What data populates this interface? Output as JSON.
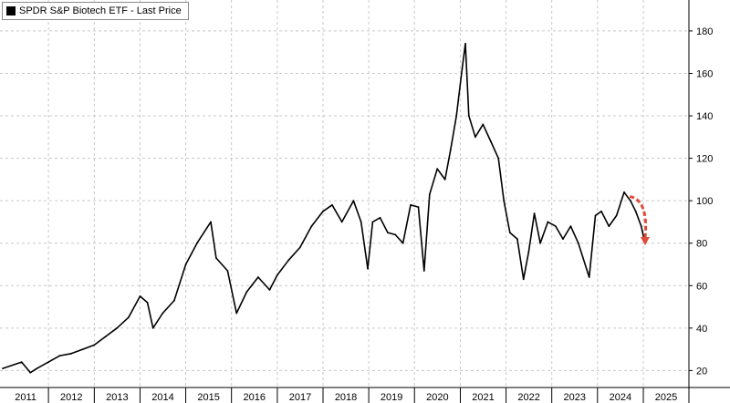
{
  "chart_data": {
    "type": "line",
    "title": "",
    "legend": {
      "position": "top-left",
      "entries": [
        "SPDR S&P Biotech ETF - Last Price"
      ]
    },
    "xlabel": "",
    "ylabel": "",
    "x_ticks": [
      "2011",
      "2012",
      "2013",
      "2014",
      "2015",
      "2016",
      "2017",
      "2018",
      "2019",
      "2020",
      "2021",
      "2022",
      "2023",
      "2024",
      "2025"
    ],
    "y_ticks": [
      20,
      40,
      60,
      80,
      100,
      120,
      140,
      160,
      180
    ],
    "ylim": [
      12,
      192
    ],
    "xlim": [
      "2011-01-01",
      "2025-12-31"
    ],
    "y_axis_position": "right",
    "grid": true,
    "colors": {
      "line": "#000000",
      "grid": "#c8c8c8",
      "arrow": "#e04a3a"
    },
    "annotations": [
      {
        "type": "arrow",
        "style": "dashed-curved",
        "color": "#e04a3a",
        "from": [
          "2024-09-15",
          102
        ],
        "to": [
          "2025-01-15",
          79
        ]
      }
    ],
    "series": [
      {
        "name": "SPDR S&P Biotech ETF - Last Price",
        "points": [
          [
            "2011-01-01",
            21
          ],
          [
            "2011-06-01",
            24
          ],
          [
            "2011-08-10",
            19
          ],
          [
            "2011-10-01",
            21
          ],
          [
            "2012-01-01",
            24
          ],
          [
            "2012-04-01",
            27
          ],
          [
            "2012-07-01",
            28
          ],
          [
            "2012-10-01",
            30
          ],
          [
            "2013-01-01",
            32
          ],
          [
            "2013-04-01",
            36
          ],
          [
            "2013-07-01",
            40
          ],
          [
            "2013-10-01",
            45
          ],
          [
            "2014-01-01",
            55
          ],
          [
            "2014-03-01",
            52
          ],
          [
            "2014-04-15",
            40
          ],
          [
            "2014-07-01",
            47
          ],
          [
            "2014-10-01",
            53
          ],
          [
            "2015-01-01",
            70
          ],
          [
            "2015-04-01",
            80
          ],
          [
            "2015-07-20",
            90
          ],
          [
            "2015-09-01",
            73
          ],
          [
            "2015-12-01",
            67
          ],
          [
            "2016-02-10",
            47
          ],
          [
            "2016-05-01",
            57
          ],
          [
            "2016-08-01",
            64
          ],
          [
            "2016-11-01",
            58
          ],
          [
            "2017-01-01",
            65
          ],
          [
            "2017-04-01",
            72
          ],
          [
            "2017-07-01",
            78
          ],
          [
            "2017-10-01",
            88
          ],
          [
            "2018-01-01",
            95
          ],
          [
            "2018-03-15",
            98
          ],
          [
            "2018-06-01",
            90
          ],
          [
            "2018-09-01",
            100
          ],
          [
            "2018-11-01",
            90
          ],
          [
            "2018-12-24",
            68
          ],
          [
            "2019-02-01",
            90
          ],
          [
            "2019-04-01",
            92
          ],
          [
            "2019-06-01",
            85
          ],
          [
            "2019-08-01",
            84
          ],
          [
            "2019-10-01",
            80
          ],
          [
            "2019-12-01",
            98
          ],
          [
            "2020-02-01",
            97
          ],
          [
            "2020-03-18",
            67
          ],
          [
            "2020-05-01",
            103
          ],
          [
            "2020-07-01",
            115
          ],
          [
            "2020-09-01",
            110
          ],
          [
            "2020-10-15",
            124
          ],
          [
            "2020-12-01",
            140
          ],
          [
            "2021-01-15",
            162
          ],
          [
            "2021-02-10",
            174
          ],
          [
            "2021-03-10",
            140
          ],
          [
            "2021-05-01",
            130
          ],
          [
            "2021-07-01",
            136
          ],
          [
            "2021-09-01",
            128
          ],
          [
            "2021-11-01",
            120
          ],
          [
            "2021-12-15",
            100
          ],
          [
            "2022-02-01",
            85
          ],
          [
            "2022-04-01",
            82
          ],
          [
            "2022-05-20",
            63
          ],
          [
            "2022-07-01",
            76
          ],
          [
            "2022-08-15",
            94
          ],
          [
            "2022-10-01",
            80
          ],
          [
            "2022-12-01",
            90
          ],
          [
            "2023-02-01",
            88
          ],
          [
            "2023-04-01",
            82
          ],
          [
            "2023-06-01",
            88
          ],
          [
            "2023-08-01",
            80
          ],
          [
            "2023-10-27",
            64
          ],
          [
            "2023-12-15",
            93
          ],
          [
            "2024-02-01",
            95
          ],
          [
            "2024-04-01",
            88
          ],
          [
            "2024-06-01",
            93
          ],
          [
            "2024-08-01",
            104
          ],
          [
            "2024-09-20",
            100
          ],
          [
            "2024-11-01",
            95
          ],
          [
            "2024-12-15",
            88
          ],
          [
            "2025-01-10",
            81
          ]
        ]
      }
    ]
  }
}
